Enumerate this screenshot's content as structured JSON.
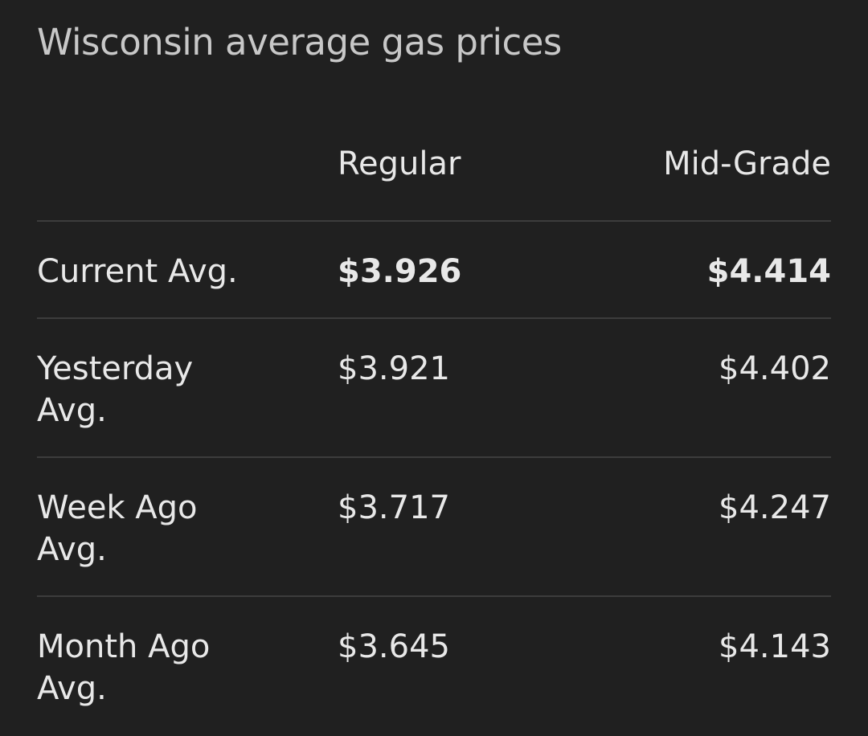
{
  "title": "Wisconsin average gas prices",
  "table": {
    "header": [
      "",
      "Regular",
      "Mid-Grade"
    ],
    "rows": [
      [
        "Current Avg.",
        "$3.926",
        "$4.414"
      ],
      [
        "Yesterday Avg.",
        "$3.921",
        "$4.402"
      ],
      [
        "Week Ago Avg.",
        "$3.717",
        "$4.247"
      ],
      [
        "Month Ago Avg.",
        "$3.645",
        "$4.143"
      ]
    ]
  }
}
